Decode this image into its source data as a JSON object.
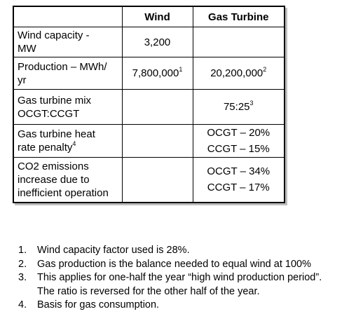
{
  "table": {
    "headers": [
      "",
      "Wind",
      "Gas Turbine"
    ],
    "rows": [
      {
        "label": [
          "Wind capacity -",
          "MW"
        ],
        "wind": "3,200",
        "gas": []
      },
      {
        "label": [
          "Production – MWh/",
          "yr"
        ],
        "wind": "7,800,000",
        "wind_note": "1",
        "gas": [
          "20,200,000"
        ],
        "gas_note": "2"
      },
      {
        "label": [
          "Gas turbine mix",
          "OCGT:CCGT"
        ],
        "wind": "",
        "gas": [
          "75:25"
        ],
        "gas_note": "3"
      },
      {
        "label": [
          "Gas turbine heat",
          "rate penalty"
        ],
        "label_note": "4",
        "wind": "",
        "gas": [
          "OCGT – 20%",
          "CCGT – 15%"
        ]
      },
      {
        "label": [
          "CO2 emissions",
          "increase due to",
          "inefficient operation"
        ],
        "wind": "",
        "gas": [
          "OCGT – 34%",
          "CCGT – 17%"
        ]
      }
    ]
  },
  "footnotes": [
    {
      "num": "1.",
      "lines": [
        "Wind capacity factor used is 28%."
      ]
    },
    {
      "num": "2.",
      "lines": [
        "Gas production is the balance needed to equal wind at 100%"
      ]
    },
    {
      "num": "3.",
      "lines": [
        "This applies for one-half the year “high wind production period”.",
        "The ratio is reversed for the other half of the year."
      ]
    },
    {
      "num": "4.",
      "lines": [
        "Basis for gas consumption."
      ]
    }
  ]
}
